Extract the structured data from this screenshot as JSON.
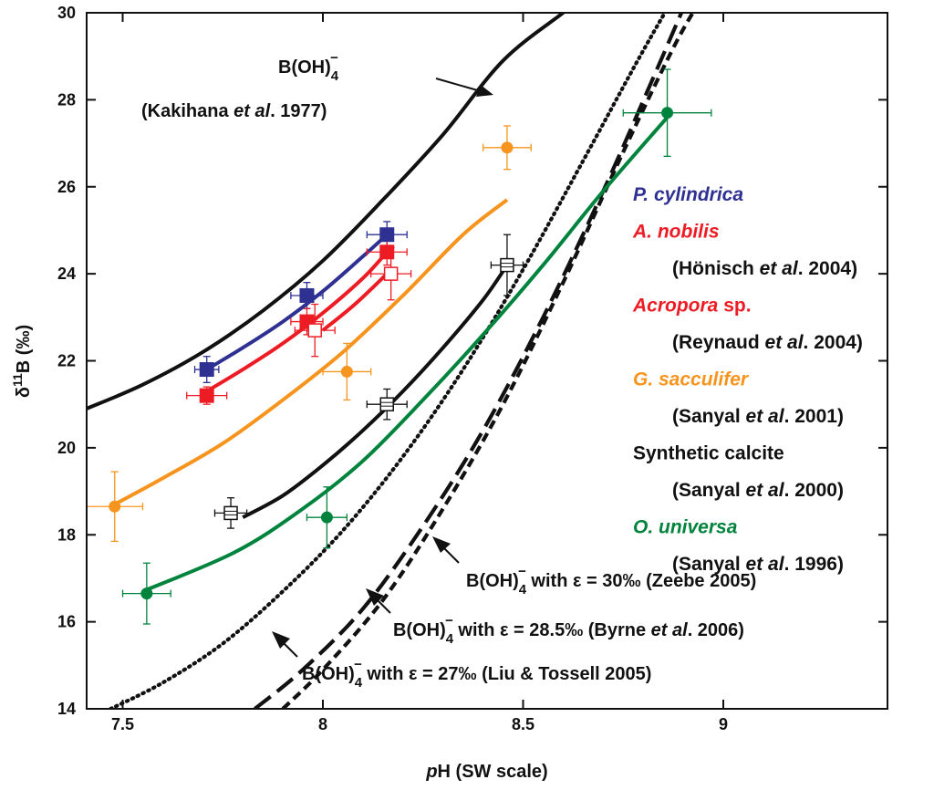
{
  "chart_data": {
    "type": "scatter",
    "title": "",
    "xlabel": "pH (SW scale)",
    "xlabel_italic_prefix": "p",
    "xlabel_rest": "H (SW scale)",
    "ylabel": "δ11B (‰)",
    "ylabel_delta": "δ",
    "ylabel_sup": "11",
    "ylabel_rest": "B (‰)",
    "xlim": [
      7.41,
      9.41
    ],
    "ylim": [
      14,
      30
    ],
    "xticks": [
      "7.5",
      "8",
      "8.5",
      "9"
    ],
    "yticks": [
      "14",
      "16",
      "18",
      "20",
      "22",
      "24",
      "26",
      "28",
      "30"
    ],
    "grid": false,
    "colors": {
      "p_cylindrica": "#2e3192",
      "a_nobilis": "#ed1c24",
      "acropora": "#ed1c24",
      "g_sacculifer": "#f7941d",
      "synthetic": "#111111",
      "o_universa": "#00843d"
    },
    "curves": [
      {
        "name": "B(OH)4- (Kakihana et al. 1977)",
        "style": "solid",
        "color": "#111111",
        "x": [
          7.41,
          7.55,
          7.7,
          7.85,
          8.0,
          8.15,
          8.3,
          8.45,
          8.6,
          8.64
        ],
        "y": [
          20.9,
          21.45,
          22.2,
          23.15,
          24.3,
          25.7,
          27.2,
          28.9,
          30.0,
          30.3
        ]
      },
      {
        "name": "B(OH)4- with ε = 27‰ (Liu & Tossell 2005)",
        "style": "dotted",
        "color": "#111111",
        "x": [
          7.47,
          7.6,
          7.75,
          7.9,
          8.05,
          8.2,
          8.35,
          8.5,
          8.65,
          8.78,
          8.86
        ],
        "y": [
          14.0,
          14.6,
          15.5,
          16.7,
          18.1,
          19.8,
          21.8,
          24.1,
          26.6,
          28.8,
          30.1
        ]
      },
      {
        "name": "B(OH)4- with ε = 28.5‰ (Byrne et al. 2006)",
        "style": "long-dash",
        "color": "#111111",
        "x": [
          7.83,
          7.95,
          8.1,
          8.25,
          8.4,
          8.55,
          8.7,
          8.82,
          8.9
        ],
        "y": [
          14.0,
          14.9,
          16.3,
          18.2,
          20.4,
          23.0,
          25.9,
          28.4,
          30.1
        ]
      },
      {
        "name": "B(OH)4- with ε = 30‰ (Zeebe 2005)",
        "style": "short-dash",
        "color": "#111111",
        "x": [
          7.9,
          8.0,
          8.15,
          8.3,
          8.45,
          8.6,
          8.75,
          8.87,
          8.93
        ],
        "y": [
          14.0,
          14.9,
          16.5,
          18.6,
          21.0,
          23.8,
          26.8,
          29.1,
          30.1
        ]
      },
      {
        "name": "P. cylindrica fit",
        "style": "solid",
        "color": "#2e3192",
        "x": [
          7.71,
          7.8,
          7.9,
          8.0,
          8.1,
          8.16
        ],
        "y": [
          21.8,
          22.3,
          22.9,
          23.6,
          24.4,
          24.9
        ]
      },
      {
        "name": "A. nobilis fit",
        "style": "solid",
        "color": "#ed1c24",
        "x": [
          7.71,
          7.8,
          7.9,
          8.0,
          8.1,
          8.16
        ],
        "y": [
          21.3,
          21.8,
          22.4,
          23.1,
          23.9,
          24.5
        ]
      },
      {
        "name": "Acropora fit",
        "style": "solid",
        "color": "#ed1c24",
        "x": [
          8.0,
          8.08,
          8.16
        ],
        "y": [
          22.7,
          23.3,
          24.0
        ]
      },
      {
        "name": "G. sacculifer fit",
        "style": "solid",
        "color": "#f7941d",
        "x": [
          7.48,
          7.6,
          7.75,
          7.9,
          8.05,
          8.2,
          8.35,
          8.46
        ],
        "y": [
          18.7,
          19.3,
          20.1,
          21.1,
          22.2,
          23.5,
          24.9,
          25.7
        ]
      },
      {
        "name": "Synthetic calcite fit",
        "style": "solid",
        "color": "#111111",
        "x": [
          7.8,
          7.9,
          8.0,
          8.1,
          8.2,
          8.3,
          8.4,
          8.46
        ],
        "y": [
          18.4,
          18.9,
          19.6,
          20.4,
          21.3,
          22.3,
          23.4,
          24.2
        ]
      },
      {
        "name": "O. universa fit",
        "style": "solid",
        "color": "#00843d",
        "x": [
          7.55,
          7.78,
          7.95,
          8.1,
          8.25,
          8.4,
          8.55,
          8.7,
          8.87
        ],
        "y": [
          16.7,
          17.6,
          18.6,
          19.7,
          21.1,
          22.6,
          24.2,
          25.9,
          27.7
        ]
      }
    ],
    "points": [
      {
        "series": "P. cylindrica",
        "marker": "square-filled",
        "color": "#2e3192",
        "data": [
          {
            "x": 7.71,
            "y": 21.8,
            "xerr": 0.03,
            "yerr": 0.3
          },
          {
            "x": 7.96,
            "y": 23.5,
            "xerr": 0.04,
            "yerr": 0.3
          },
          {
            "x": 8.16,
            "y": 24.9,
            "xerr": 0.05,
            "yerr": 0.3
          }
        ]
      },
      {
        "series": "A. nobilis",
        "marker": "square-filled",
        "color": "#ed1c24",
        "data": [
          {
            "x": 7.71,
            "y": 21.2,
            "xerr": 0.05,
            "yerr": 0.2
          },
          {
            "x": 7.96,
            "y": 22.9,
            "xerr": 0.04,
            "yerr": 0.3
          },
          {
            "x": 8.16,
            "y": 24.5,
            "xerr": 0.05,
            "yerr": 0.3
          }
        ]
      },
      {
        "series": "Acropora sp.",
        "marker": "square-open",
        "color": "#ed1c24",
        "data": [
          {
            "x": 7.98,
            "y": 22.7,
            "xerr": 0.05,
            "yerr": 0.6
          },
          {
            "x": 8.17,
            "y": 24.0,
            "xerr": 0.05,
            "yerr": 0.6
          }
        ]
      },
      {
        "series": "G. sacculifer",
        "marker": "circle-filled",
        "color": "#f7941d",
        "data": [
          {
            "x": 7.48,
            "y": 18.65,
            "xerr": 0.07,
            "yerr": 0.8
          },
          {
            "x": 8.06,
            "y": 21.75,
            "xerr": 0.06,
            "yerr": 0.65
          },
          {
            "x": 8.46,
            "y": 26.9,
            "xerr": 0.06,
            "yerr": 0.5
          }
        ]
      },
      {
        "series": "Synthetic calcite",
        "marker": "square-hatched",
        "color": "#111111",
        "data": [
          {
            "x": 7.77,
            "y": 18.5,
            "xerr": 0.04,
            "yerr": 0.35
          },
          {
            "x": 8.16,
            "y": 21.0,
            "xerr": 0.05,
            "yerr": 0.35
          },
          {
            "x": 8.46,
            "y": 24.2,
            "xerr": 0.04,
            "yerr": 0.7
          }
        ]
      },
      {
        "series": "O. universa",
        "marker": "circle-filled",
        "color": "#00843d",
        "data": [
          {
            "x": 7.56,
            "y": 16.65,
            "xerr": 0.06,
            "yerr": 0.7
          },
          {
            "x": 8.01,
            "y": 18.4,
            "xerr": 0.05,
            "yerr": 0.7
          },
          {
            "x": 8.86,
            "y": 27.7,
            "xerr": 0.11,
            "yerr": 1.0
          }
        ]
      }
    ],
    "legend": [
      {
        "text": "P. cylindrica",
        "color": "#2e3192",
        "italic": true
      },
      {
        "text": "A. nobilis",
        "color": "#ed1c24",
        "italic": true
      },
      {
        "text": "(Hönisch et al. 2004)",
        "color": "#111111",
        "italic": false,
        "indent": true
      },
      {
        "text": "Acropora sp.",
        "color": "#ed1c24",
        "italic": true
      },
      {
        "text": "(Reynaud et al. 2004)",
        "color": "#111111",
        "italic": false,
        "indent": true
      },
      {
        "text": "G. sacculifer",
        "color": "#f7941d",
        "italic": true
      },
      {
        "text": "(Sanyal et al. 2001)",
        "color": "#111111",
        "italic": false,
        "indent": true
      },
      {
        "text": "Synthetic calcite",
        "color": "#111111",
        "italic": false
      },
      {
        "text": "(Sanyal et al. 2000)",
        "color": "#111111",
        "italic": false,
        "indent": true
      },
      {
        "text": "O. universa",
        "color": "#00843d",
        "italic": true
      },
      {
        "text": "(Sanyal et al. 1996)",
        "color": "#111111",
        "italic": false,
        "indent": true
      }
    ],
    "annotations": [
      {
        "id": "kakihana-species",
        "text": "B(OH)4-"
      },
      {
        "id": "kakihana-ref",
        "text": "(Kakihana et al. 1977)"
      },
      {
        "id": "zeebe",
        "text": "B(OH)4- with ε = 30‰ (Zeebe 2005)"
      },
      {
        "id": "byrne",
        "text": "B(OH)4- with ε = 28.5‰ (Byrne et al. 2006)"
      },
      {
        "id": "liu",
        "text": "B(OH)4- with ε = 27‰  (Liu & Tossell 2005)"
      }
    ]
  }
}
